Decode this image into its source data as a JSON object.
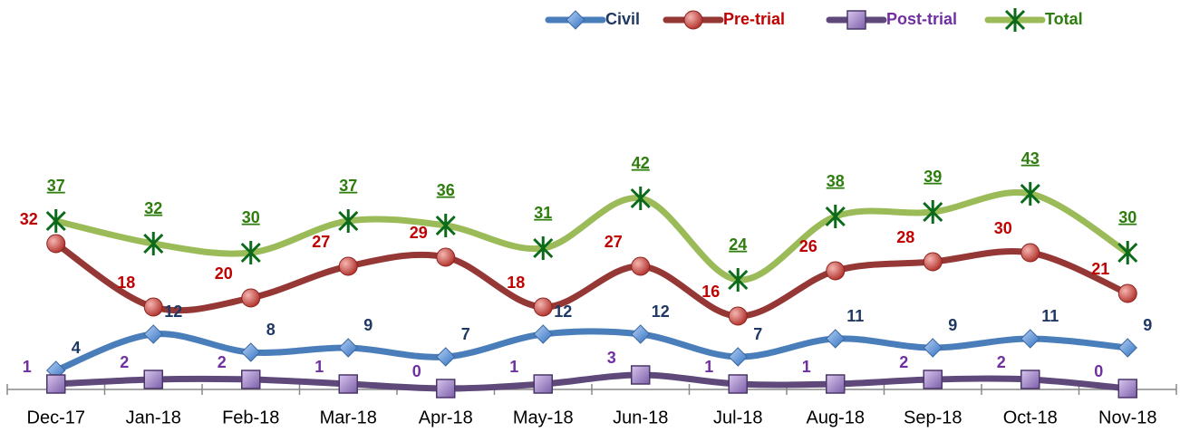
{
  "chart_data": {
    "type": "line",
    "categories": [
      "Dec-17",
      "Jan-18",
      "Feb-18",
      "Mar-18",
      "Apr-18",
      "May-18",
      "Jun-18",
      "Jul-18",
      "Aug-18",
      "Sep-18",
      "Oct-18",
      "Nov-18"
    ],
    "series": [
      {
        "name": "Civil",
        "color": "#4a7ebb",
        "label_color": "#1f3864",
        "marker": "diamond",
        "values": [
          4,
          12,
          8,
          9,
          7,
          12,
          12,
          7,
          11,
          9,
          11,
          9
        ]
      },
      {
        "name": "Pre-trial",
        "color": "#953735",
        "label_color": "#c00000",
        "marker": "circle",
        "values": [
          32,
          18,
          20,
          27,
          29,
          18,
          27,
          16,
          26,
          28,
          30,
          21
        ]
      },
      {
        "name": "Post-trial",
        "color": "#5f497a",
        "label_color": "#7030a0",
        "marker": "square",
        "values": [
          1,
          2,
          2,
          1,
          0,
          1,
          3,
          1,
          1,
          2,
          2,
          0
        ]
      },
      {
        "name": "Total",
        "color": "#9bbb59",
        "label_color": "#2e7d0e",
        "marker": "x",
        "values": [
          37,
          32,
          30,
          37,
          36,
          31,
          42,
          24,
          38,
          39,
          43,
          30
        ]
      }
    ],
    "ylim": [
      0,
      80
    ],
    "grid": false,
    "legend": "top-right"
  }
}
